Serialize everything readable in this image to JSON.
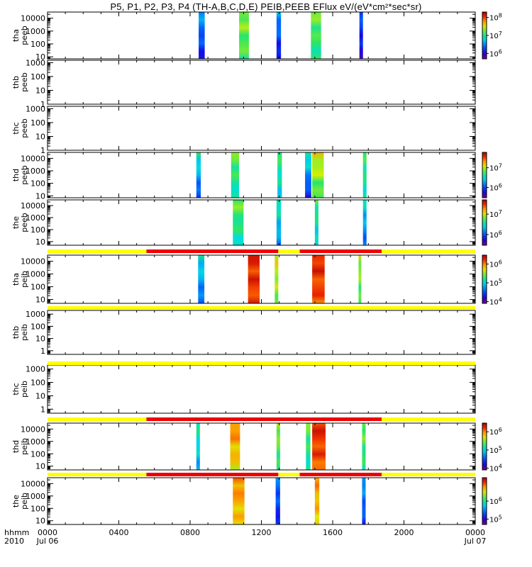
{
  "title": "P5, P1, P2, P3, P4 (TH-A,B,C,D,E) PEIB,PEEB EFlux eV/(eV*cm²*sec*sr)",
  "chart_data": {
    "type": "heatmap",
    "x_axis": {
      "range_hours": [
        0,
        24
      ],
      "ticks": [
        {
          "hour": 0,
          "label": "0000",
          "sub": "Jul 06"
        },
        {
          "hour": 4,
          "label": "0400",
          "sub": ""
        },
        {
          "hour": 8,
          "label": "0800",
          "sub": ""
        },
        {
          "hour": 12,
          "label": "1200",
          "sub": ""
        },
        {
          "hour": 16,
          "label": "1600",
          "sub": ""
        },
        {
          "hour": 20,
          "label": "2000",
          "sub": ""
        },
        {
          "hour": 24,
          "label": "0000",
          "sub": "Jul 07"
        }
      ],
      "left_label_1": "hhmm",
      "left_label_2": "2010"
    },
    "panels": [
      {
        "probe": "tha",
        "product": "peeb",
        "ylim": [
          7,
          30000
        ],
        "y_ticks": [
          "10",
          "100",
          "1000",
          "10000"
        ],
        "has_data": true,
        "colorbar": {
          "range": [
            500000,
            200000000
          ],
          "ticks": [
            {
              "v": 1000000,
              "m": "10",
              "e": "6"
            },
            {
              "v": 10000000,
              "m": "10",
              "e": "7"
            },
            {
              "v": 100000000,
              "m": "10",
              "e": "8"
            }
          ]
        },
        "segments": [
          {
            "start": 8.48,
            "end": 8.82,
            "c_low": 0.15,
            "c_high": 0.35
          },
          {
            "start": 10.75,
            "end": 11.3,
            "c_low": 0.55,
            "c_high": 0.62
          },
          {
            "start": 12.85,
            "end": 13.1,
            "c_low": 0.12,
            "c_high": 0.35
          },
          {
            "start": 14.78,
            "end": 15.35,
            "c_low": 0.5,
            "c_high": 0.6
          },
          {
            "start": 17.5,
            "end": 17.7,
            "c_low": 0.1,
            "c_high": 0.25
          }
        ]
      },
      {
        "probe": "thb",
        "product": "peeb",
        "ylim": [
          1,
          1500
        ],
        "y_ticks": [
          "1",
          "10",
          "100",
          "1000"
        ],
        "has_data": false
      },
      {
        "probe": "thc",
        "product": "peeb",
        "ylim": [
          1,
          1500
        ],
        "y_ticks": [
          "1",
          "10",
          "100",
          "1000"
        ],
        "has_data": false
      },
      {
        "probe": "thd",
        "product": "peeb",
        "ylim": [
          7,
          30000
        ],
        "y_ticks": [
          "10",
          "100",
          "1000",
          "10000"
        ],
        "has_data": true,
        "colorbar": {
          "range": [
            300000,
            60000000
          ],
          "ticks": [
            {
              "v": 1000000,
              "m": "10",
              "e": "6"
            },
            {
              "v": 10000000,
              "m": "10",
              "e": "7"
            }
          ]
        },
        "segments": [
          {
            "start": 8.35,
            "end": 8.6,
            "c_low": 0.2,
            "c_high": 0.5
          },
          {
            "start": 10.3,
            "end": 10.75,
            "c_low": 0.45,
            "c_high": 0.6
          },
          {
            "start": 12.9,
            "end": 13.15,
            "c_low": 0.4,
            "c_high": 0.55
          },
          {
            "start": 14.45,
            "end": 14.8,
            "c_low": 0.15,
            "c_high": 0.5
          },
          {
            "start": 14.85,
            "end": 15.5,
            "c_low": 0.55,
            "c_high": 0.7
          },
          {
            "start": 17.7,
            "end": 17.9,
            "c_low": 0.45,
            "c_high": 0.55
          }
        ]
      },
      {
        "probe": "the",
        "product": "peeb",
        "ylim": [
          5,
          30000
        ],
        "y_ticks": [
          "10",
          "100",
          "1000",
          "10000"
        ],
        "has_data": true,
        "colorbar": {
          "range": [
            300000,
            50000000
          ],
          "ticks": [
            {
              "v": 1000000,
              "m": "10",
              "e": "6"
            },
            {
              "v": 10000000,
              "m": "10",
              "e": "7"
            }
          ]
        },
        "segments": [
          {
            "start": 10.4,
            "end": 11.0,
            "c_low": 0.45,
            "c_high": 0.6
          },
          {
            "start": 12.85,
            "end": 13.1,
            "c_low": 0.3,
            "c_high": 0.5
          },
          {
            "start": 15.0,
            "end": 15.2,
            "c_low": 0.4,
            "c_high": 0.55
          },
          {
            "start": 17.7,
            "end": 17.9,
            "c_low": 0.25,
            "c_high": 0.45
          }
        ]
      },
      {
        "probe": "tha",
        "product": "peib",
        "ylim": [
          5,
          30000
        ],
        "y_ticks": [
          "10",
          "100",
          "1000",
          "10000"
        ],
        "has_data": true,
        "colorbar": {
          "range": [
            8000,
            3000000
          ],
          "ticks": [
            {
              "v": 10000,
              "m": "10",
              "e": "4"
            },
            {
              "v": 100000,
              "m": "10",
              "e": "5"
            },
            {
              "v": 1000000,
              "m": "10",
              "e": "6"
            }
          ]
        },
        "segments": [
          {
            "start": 8.45,
            "end": 8.8,
            "c_low": 0.25,
            "c_high": 0.45
          },
          {
            "start": 11.25,
            "end": 11.9,
            "c_low": 0.88,
            "c_high": 0.92
          },
          {
            "start": 12.75,
            "end": 12.95,
            "c_low": 0.6,
            "c_high": 0.7
          },
          {
            "start": 14.85,
            "end": 15.55,
            "c_low": 0.86,
            "c_high": 0.92
          },
          {
            "start": 17.45,
            "end": 17.6,
            "c_low": 0.55,
            "c_high": 0.65
          }
        ]
      },
      {
        "probe": "thb",
        "product": "peib",
        "ylim": [
          0.5,
          2000
        ],
        "y_ticks": [
          "1",
          "10",
          "100",
          "1000"
        ],
        "has_data": false
      },
      {
        "probe": "thc",
        "product": "peib",
        "ylim": [
          0.5,
          2000
        ],
        "y_ticks": [
          "1",
          "10",
          "100",
          "1000"
        ],
        "has_data": false
      },
      {
        "probe": "thd",
        "product": "peib",
        "ylim": [
          5,
          30000
        ],
        "y_ticks": [
          "10",
          "100",
          "1000",
          "10000"
        ],
        "has_data": true,
        "colorbar": {
          "range": [
            8000,
            3000000
          ],
          "ticks": [
            {
              "v": 10000,
              "m": "10",
              "e": "4"
            },
            {
              "v": 100000,
              "m": "10",
              "e": "5"
            },
            {
              "v": 1000000,
              "m": "10",
              "e": "6"
            }
          ]
        },
        "segments": [
          {
            "start": 8.35,
            "end": 8.55,
            "c_low": 0.35,
            "c_high": 0.5
          },
          {
            "start": 10.25,
            "end": 10.8,
            "c_low": 0.7,
            "c_high": 0.82
          },
          {
            "start": 12.85,
            "end": 13.05,
            "c_low": 0.5,
            "c_high": 0.65
          },
          {
            "start": 14.5,
            "end": 14.75,
            "c_low": 0.45,
            "c_high": 0.6
          },
          {
            "start": 14.85,
            "end": 15.6,
            "c_low": 0.85,
            "c_high": 0.92
          },
          {
            "start": 17.65,
            "end": 17.85,
            "c_low": 0.5,
            "c_high": 0.6
          }
        ]
      },
      {
        "probe": "the",
        "product": "peib",
        "ylim": [
          5,
          30000
        ],
        "y_ticks": [
          "10",
          "100",
          "1000",
          "10000"
        ],
        "has_data": true,
        "colorbar": {
          "range": [
            50000,
            20000000
          ],
          "ticks": [
            {
              "v": 100000,
              "m": "10",
              "e": "5"
            },
            {
              "v": 1000000,
              "m": "10",
              "e": "6"
            }
          ]
        },
        "segments": [
          {
            "start": 10.4,
            "end": 11.05,
            "c_low": 0.72,
            "c_high": 0.82
          },
          {
            "start": 12.8,
            "end": 13.05,
            "c_low": 0.15,
            "c_high": 0.3
          },
          {
            "start": 15.0,
            "end": 15.25,
            "c_low": 0.72,
            "c_high": 0.8
          },
          {
            "start": 17.65,
            "end": 17.85,
            "c_low": 0.2,
            "c_high": 0.35
          }
        ]
      }
    ],
    "mode_bars": [
      {
        "after_panel": 4,
        "segments": [
          {
            "start": 0,
            "end": 5.55,
            "color": "#ffff00"
          },
          {
            "start": 5.55,
            "end": 12.95,
            "color": "#ee0000"
          },
          {
            "start": 12.95,
            "end": 14.15,
            "color": "#ffff00"
          },
          {
            "start": 14.15,
            "end": 18.75,
            "color": "#ee0000"
          },
          {
            "start": 18.75,
            "end": 24,
            "color": "#ffff00"
          }
        ]
      },
      {
        "after_panel": 5,
        "segments": [
          {
            "start": 0,
            "end": 24,
            "color": "#ffff00"
          }
        ]
      },
      {
        "after_panel": 6,
        "segments": [
          {
            "start": 0,
            "end": 24,
            "color": "#ffff00"
          }
        ]
      },
      {
        "after_panel": 7,
        "segments": [
          {
            "start": 0,
            "end": 5.55,
            "color": "#ffff00"
          },
          {
            "start": 5.55,
            "end": 18.75,
            "color": "#ee0000"
          },
          {
            "start": 18.75,
            "end": 24,
            "color": "#ffff00"
          }
        ]
      },
      {
        "after_panel": 8,
        "segments": [
          {
            "start": 0,
            "end": 5.55,
            "color": "#ffff00"
          },
          {
            "start": 5.55,
            "end": 12.95,
            "color": "#ee0000"
          },
          {
            "start": 12.95,
            "end": 14.15,
            "color": "#ffff00"
          },
          {
            "start": 14.15,
            "end": 18.75,
            "color": "#ee0000"
          },
          {
            "start": 18.75,
            "end": 24,
            "color": "#ffff00"
          }
        ]
      }
    ]
  }
}
